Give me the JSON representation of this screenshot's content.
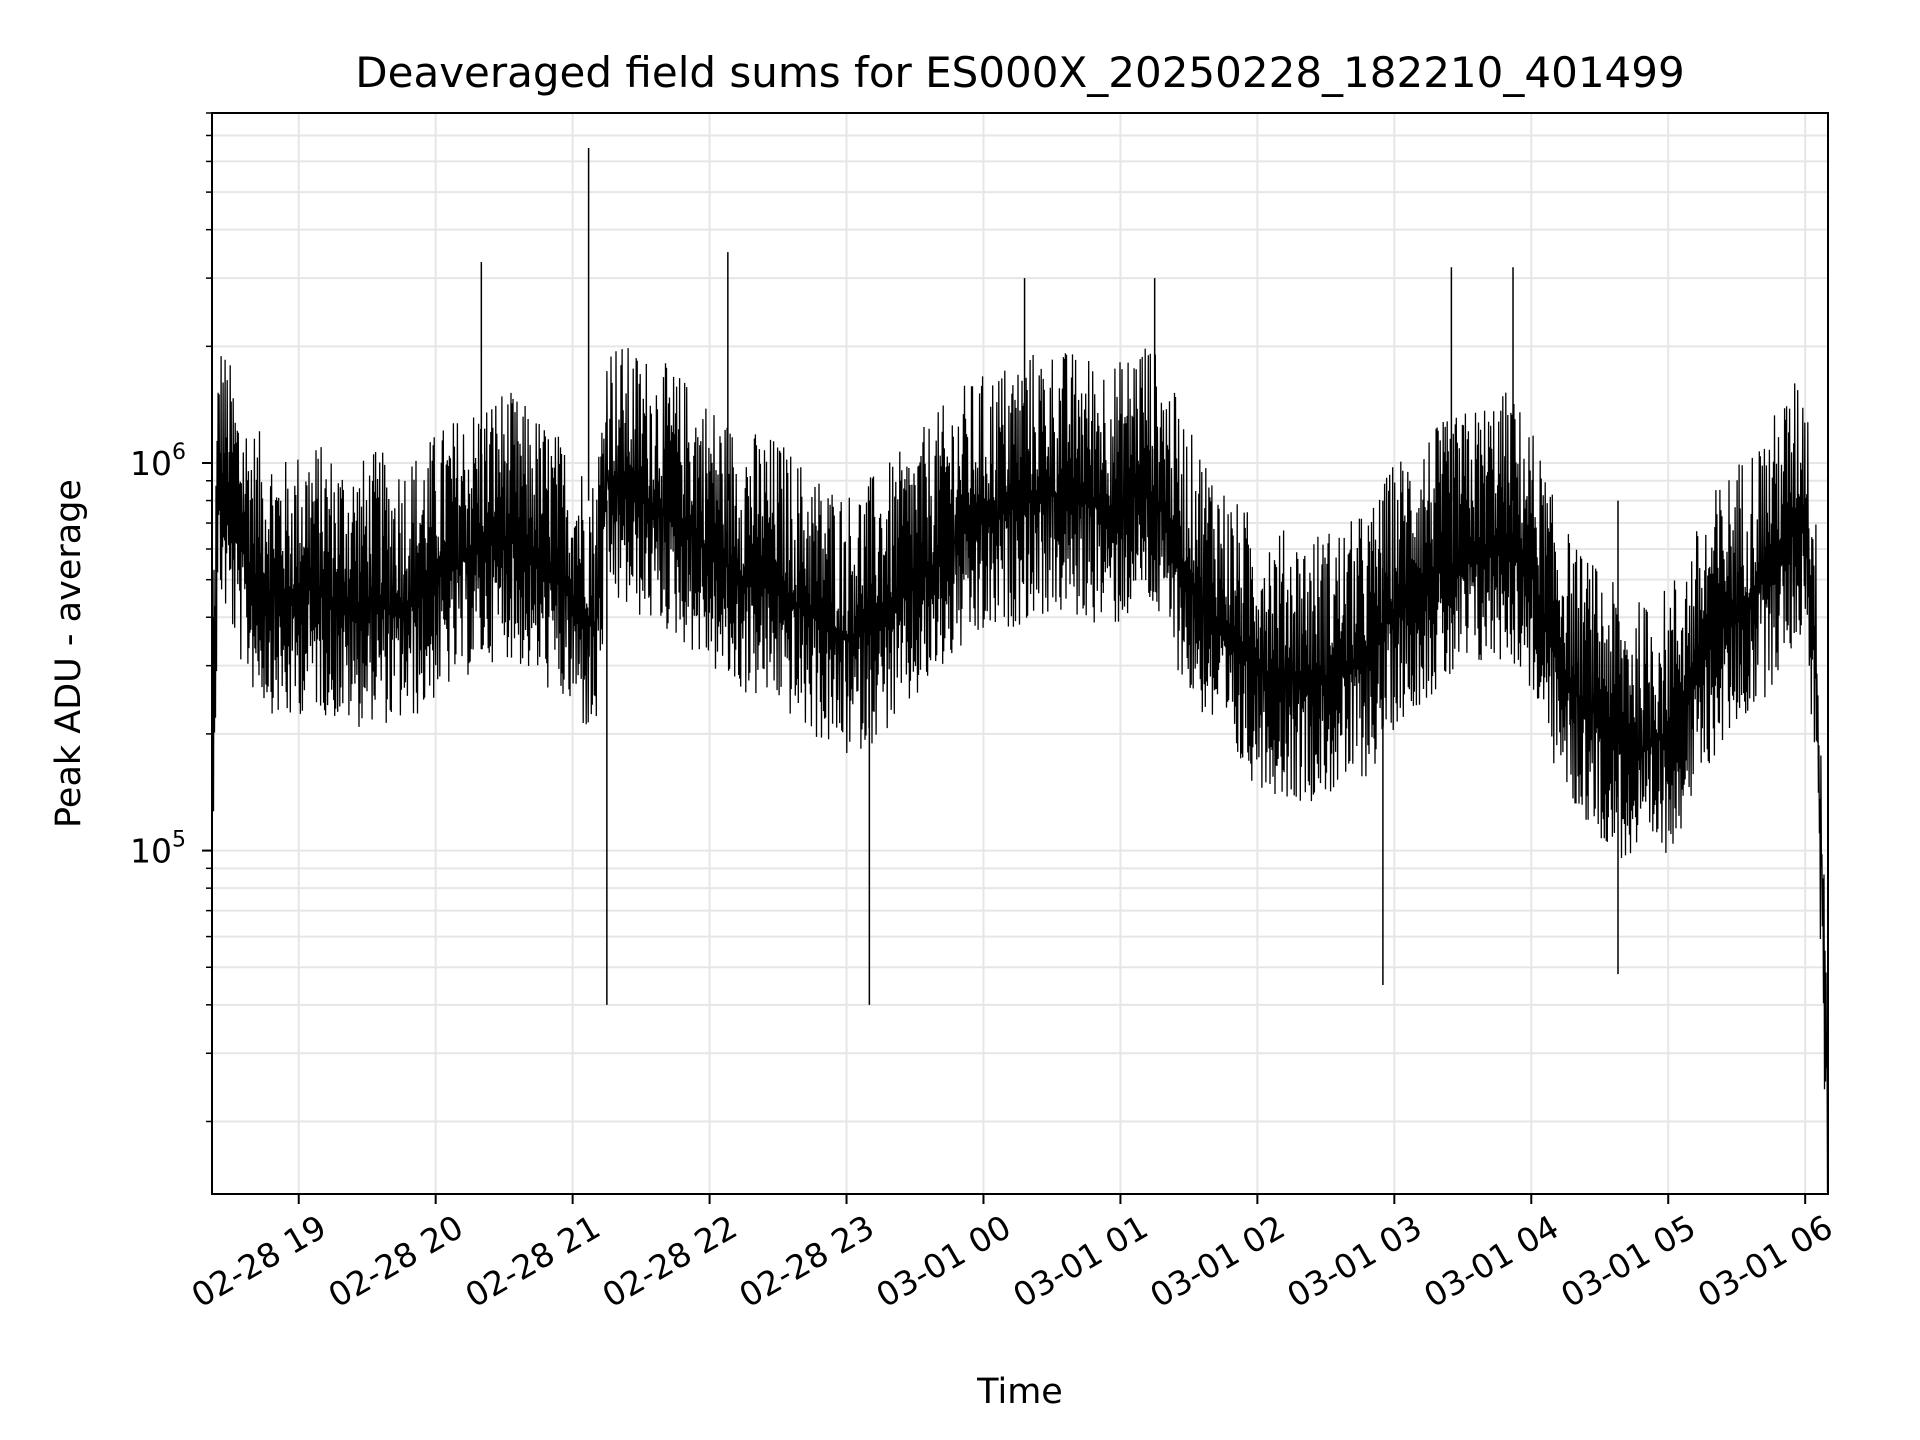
{
  "chart_data": {
    "type": "line",
    "title": "Deaveraged field sums for ES000X_20250228_182210_401499",
    "xlabel": "Time",
    "ylabel": "Peak ADU - average",
    "yscale": "log",
    "xlim": [
      "2025-02-28T18:22",
      "2025-03-01T06:10"
    ],
    "ylim": [
      13000,
      8000000
    ],
    "grid": true,
    "series_color": "#000000",
    "x_ticks": [
      {
        "label": "02-28 19",
        "value": "2025-02-28T19:00"
      },
      {
        "label": "02-28 20",
        "value": "2025-02-28T20:00"
      },
      {
        "label": "02-28 21",
        "value": "2025-02-28T21:00"
      },
      {
        "label": "02-28 22",
        "value": "2025-02-28T22:00"
      },
      {
        "label": "02-28 23",
        "value": "2025-02-28T23:00"
      },
      {
        "label": "03-01 00",
        "value": "2025-03-01T00:00"
      },
      {
        "label": "03-01 01",
        "value": "2025-03-01T01:00"
      },
      {
        "label": "03-01 02",
        "value": "2025-03-01T02:00"
      },
      {
        "label": "03-01 03",
        "value": "2025-03-01T03:00"
      },
      {
        "label": "03-01 04",
        "value": "2025-03-01T04:00"
      },
      {
        "label": "03-01 05",
        "value": "2025-03-01T05:00"
      },
      {
        "label": "03-01 06",
        "value": "2025-03-01T06:00"
      }
    ],
    "y_ticks": [
      {
        "base": "10",
        "exp": "5",
        "value": 100000
      },
      {
        "base": "10",
        "exp": "6",
        "value": 1000000
      }
    ],
    "series": [
      {
        "x": [
          "2025-02-28T18:22",
          "2025-02-28T18:25",
          "2025-02-28T18:30",
          "2025-02-28T18:35",
          "2025-02-28T18:40",
          "2025-02-28T18:45",
          "2025-02-28T18:50",
          "2025-02-28T18:55",
          "2025-02-28T19:00",
          "2025-02-28T19:05",
          "2025-02-28T19:10",
          "2025-02-28T19:15",
          "2025-02-28T19:20",
          "2025-02-28T19:25",
          "2025-02-28T19:30",
          "2025-02-28T19:35",
          "2025-02-28T19:40",
          "2025-02-28T19:45",
          "2025-02-28T19:50",
          "2025-02-28T19:55",
          "2025-02-28T20:00",
          "2025-02-28T20:10",
          "2025-02-28T20:20",
          "2025-02-28T20:30",
          "2025-02-28T20:40",
          "2025-02-28T20:50",
          "2025-02-28T21:00",
          "2025-02-28T21:10",
          "2025-02-28T21:15",
          "2025-02-28T21:20",
          "2025-02-28T21:30",
          "2025-02-28T21:40",
          "2025-02-28T21:50",
          "2025-02-28T22:00",
          "2025-02-28T22:10",
          "2025-02-28T22:20",
          "2025-02-28T22:30",
          "2025-02-28T22:40",
          "2025-02-28T22:50",
          "2025-02-28T23:00",
          "2025-02-28T23:10",
          "2025-02-28T23:20",
          "2025-02-28T23:30",
          "2025-02-28T23:40",
          "2025-02-28T23:50",
          "2025-03-01T00:00",
          "2025-03-01T00:10",
          "2025-03-01T00:20",
          "2025-03-01T00:30",
          "2025-03-01T00:40",
          "2025-03-01T00:50",
          "2025-03-01T01:00",
          "2025-03-01T01:10",
          "2025-03-01T01:20",
          "2025-03-01T01:30",
          "2025-03-01T01:40",
          "2025-03-01T01:50",
          "2025-03-01T02:00",
          "2025-03-01T02:10",
          "2025-03-01T02:20",
          "2025-03-01T02:30",
          "2025-03-01T02:40",
          "2025-03-01T02:50",
          "2025-03-01T03:00",
          "2025-03-01T03:10",
          "2025-03-01T03:20",
          "2025-03-01T03:30",
          "2025-03-01T03:40",
          "2025-03-01T03:50",
          "2025-03-01T04:00",
          "2025-03-01T04:10",
          "2025-03-01T04:20",
          "2025-03-01T04:30",
          "2025-03-01T04:40",
          "2025-03-01T04:50",
          "2025-03-01T05:00",
          "2025-03-01T05:10",
          "2025-03-01T05:20",
          "2025-03-01T05:30",
          "2025-03-01T05:40",
          "2025-03-01T05:50",
          "2025-03-01T06:00",
          "2025-03-01T06:05",
          "2025-03-01T06:10"
        ],
        "values": [
          180000,
          900000,
          750000,
          600000,
          520000,
          480000,
          450000,
          420000,
          450000,
          480000,
          460000,
          440000,
          430000,
          420000,
          430000,
          450000,
          420000,
          430000,
          440000,
          460000,
          500000,
          550000,
          600000,
          650000,
          580000,
          520000,
          450000,
          380000,
          900000,
          850000,
          800000,
          750000,
          680000,
          600000,
          520000,
          500000,
          480000,
          420000,
          380000,
          350000,
          380000,
          420000,
          480000,
          560000,
          650000,
          700000,
          750000,
          800000,
          820000,
          800000,
          780000,
          760000,
          900000,
          720000,
          500000,
          420000,
          330000,
          300000,
          280000,
          270000,
          280000,
          290000,
          320000,
          420000,
          480000,
          520000,
          560000,
          600000,
          640000,
          520000,
          330000,
          250000,
          220000,
          190000,
          180000,
          200000,
          260000,
          350000,
          420000,
          480000,
          600000,
          750000,
          280000,
          20000
        ],
        "spikes": [
          {
            "x": "2025-02-28T21:07",
            "value": 6500000
          },
          {
            "x": "2025-02-28T21:15",
            "value": 40000
          },
          {
            "x": "2025-02-28T20:20",
            "value": 3300000
          },
          {
            "x": "2025-02-28T22:08",
            "value": 3500000
          },
          {
            "x": "2025-02-28T23:10",
            "value": 40000
          },
          {
            "x": "2025-03-01T00:18",
            "value": 3000000
          },
          {
            "x": "2025-03-01T01:15",
            "value": 3000000
          },
          {
            "x": "2025-03-01T03:25",
            "value": 3200000
          },
          {
            "x": "2025-03-01T03:52",
            "value": 3200000
          },
          {
            "x": "2025-03-01T04:38",
            "value": 48000
          },
          {
            "x": "2025-03-01T02:55",
            "value": 45000
          }
        ]
      }
    ]
  }
}
